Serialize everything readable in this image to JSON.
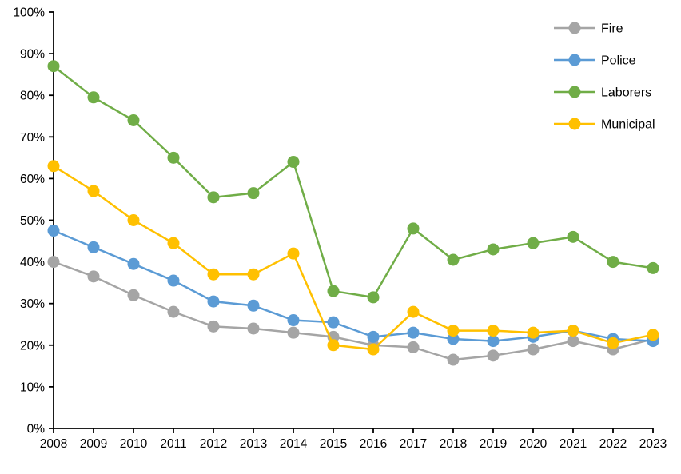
{
  "chart_data": {
    "type": "line",
    "title": "",
    "xlabel": "",
    "ylabel": "",
    "x": [
      2008,
      2009,
      2010,
      2011,
      2012,
      2013,
      2014,
      2015,
      2016,
      2017,
      2018,
      2019,
      2020,
      2021,
      2022,
      2023
    ],
    "series": [
      {
        "name": "Fire",
        "color": "#A5A5A5",
        "values": [
          40,
          36.5,
          32,
          28,
          24.5,
          24,
          23,
          22,
          20,
          19.5,
          16.5,
          17.5,
          19,
          21,
          19,
          21.5
        ]
      },
      {
        "name": "Police",
        "color": "#5B9BD5",
        "values": [
          47.5,
          43.5,
          39.5,
          35.5,
          30.5,
          29.5,
          26,
          25.5,
          22,
          23,
          21.5,
          21,
          22,
          23.5,
          21.5,
          21
        ]
      },
      {
        "name": "Laborers",
        "color": "#70AD47",
        "values": [
          87,
          79.5,
          74,
          65,
          55.5,
          56.5,
          64,
          33,
          31.5,
          48,
          40.5,
          43,
          44.5,
          46,
          40,
          38.5
        ]
      },
      {
        "name": "Municipal",
        "color": "#FFC000",
        "values": [
          63,
          57,
          50,
          44.5,
          37,
          37,
          42,
          20,
          19,
          28,
          23.5,
          23.5,
          23,
          23.5,
          20.5,
          22.5
        ]
      }
    ],
    "ylim": [
      0,
      100
    ],
    "y_tick_step": 10,
    "y_tick_labels": [
      "0%",
      "10%",
      "20%",
      "30%",
      "40%",
      "50%",
      "60%",
      "70%",
      "80%",
      "90%",
      "100%"
    ],
    "x_tick_labels": [
      "2008",
      "2009",
      "2010",
      "2011",
      "2012",
      "2013",
      "2014",
      "2015",
      "2016",
      "2017",
      "2018",
      "2019",
      "2020",
      "2021",
      "2022",
      "2023"
    ],
    "legend_position": "top-right",
    "legend_entries": [
      "Fire",
      "Police",
      "Laborers",
      "Municipal"
    ],
    "grid": false,
    "axis_color": "#000000",
    "background_color": "#FFFFFF"
  }
}
